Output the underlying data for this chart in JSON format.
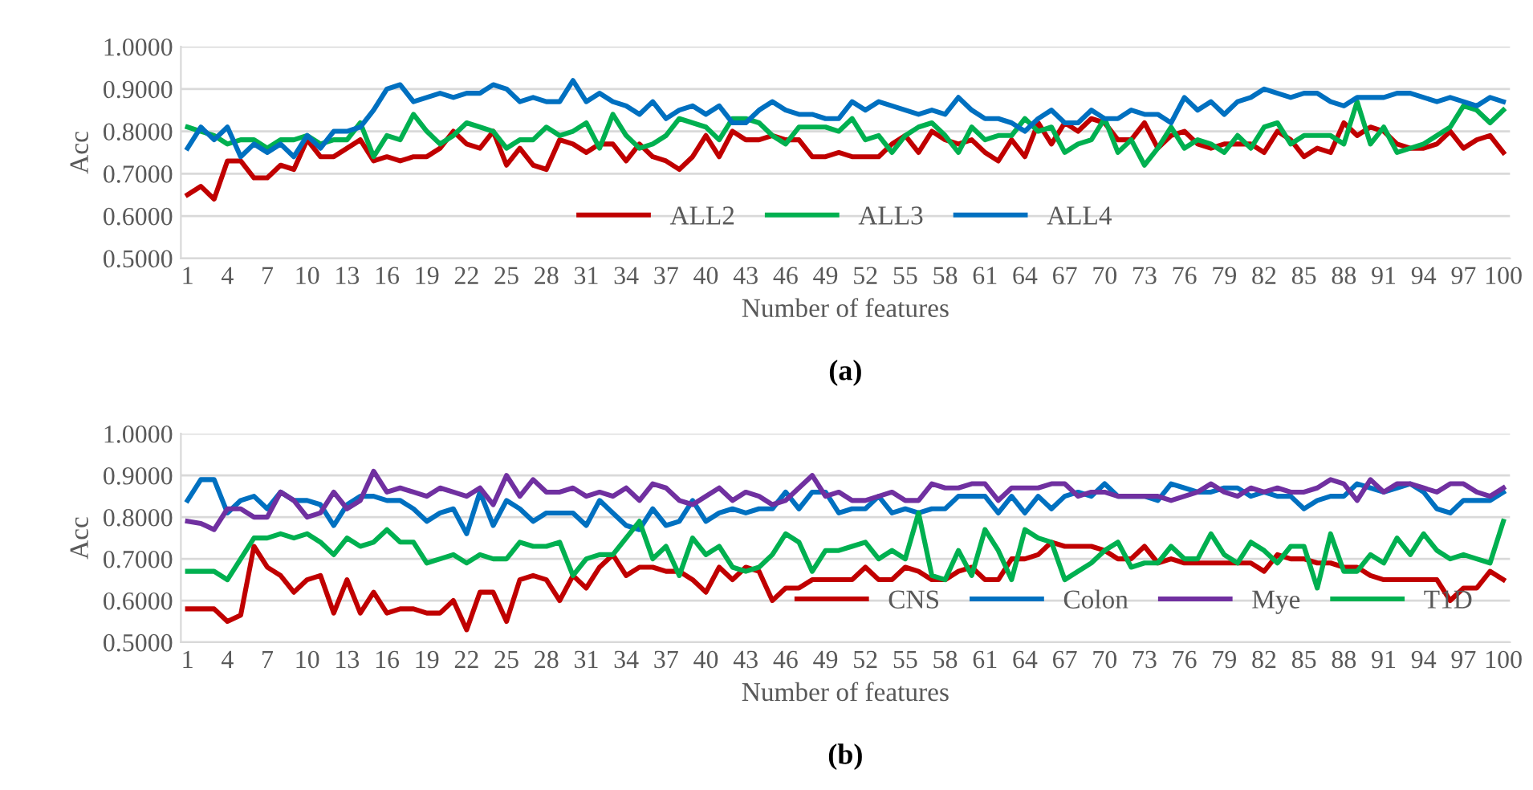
{
  "chart_data": [
    {
      "type": "line",
      "xlabel": "Number of features",
      "ylabel": "Acc",
      "annotations": [
        "(a)"
      ],
      "categories": [
        "1",
        null,
        null,
        "4",
        null,
        null,
        "7",
        null,
        null,
        "10",
        null,
        null,
        "13",
        null,
        null,
        "16",
        null,
        null,
        "19",
        null,
        null,
        "22",
        null,
        null,
        "25",
        null,
        null,
        "28",
        null,
        null,
        "31",
        null,
        null,
        "34",
        null,
        null,
        "37",
        null,
        null,
        "40",
        null,
        null,
        "43",
        null,
        null,
        "46",
        null,
        null,
        "49",
        null,
        null,
        "52",
        null,
        null,
        "55",
        null,
        null,
        "58",
        null,
        null,
        "61",
        null,
        null,
        "64",
        null,
        null,
        "67",
        null,
        null,
        "70",
        null,
        null,
        "73",
        null,
        null,
        "76",
        null,
        null,
        "79",
        null,
        null,
        "82",
        null,
        null,
        "85",
        null,
        null,
        "88",
        null,
        null,
        "91",
        null,
        null,
        "94",
        null,
        null,
        "97",
        null,
        null,
        "100"
      ],
      "ylim": [
        0.5,
        1.0
      ],
      "yticks": [
        {
          "value": 0.5,
          "label": "0.5000"
        },
        {
          "value": 0.6,
          "label": "0.6000"
        },
        {
          "value": 0.7,
          "label": "0.7000"
        },
        {
          "value": 0.8,
          "label": "0.8000"
        },
        {
          "value": 0.9,
          "label": "0.9000"
        },
        {
          "value": 1.0,
          "label": "1.0000"
        }
      ],
      "grid": "y",
      "legend": "bottom",
      "marker": "none",
      "line_style": "solid",
      "series": [
        {
          "name": "ALL2",
          "color": "#c00000",
          "values": [
            0.65,
            0.67,
            0.64,
            0.73,
            0.73,
            0.69,
            0.69,
            0.72,
            0.71,
            0.78,
            0.74,
            0.74,
            0.76,
            0.78,
            0.73,
            0.74,
            0.73,
            0.74,
            0.74,
            0.76,
            0.8,
            0.77,
            0.76,
            0.8,
            0.72,
            0.76,
            0.72,
            0.71,
            0.78,
            0.77,
            0.75,
            0.77,
            0.77,
            0.73,
            0.77,
            0.74,
            0.73,
            0.71,
            0.74,
            0.79,
            0.74,
            0.8,
            0.78,
            0.78,
            0.79,
            0.78,
            0.78,
            0.74,
            0.74,
            0.75,
            0.74,
            0.74,
            0.74,
            0.77,
            0.79,
            0.75,
            0.8,
            0.78,
            0.77,
            0.78,
            0.75,
            0.73,
            0.78,
            0.74,
            0.82,
            0.77,
            0.82,
            0.8,
            0.83,
            0.82,
            0.78,
            0.78,
            0.82,
            0.76,
            0.79,
            0.8,
            0.77,
            0.76,
            0.77,
            0.77,
            0.77,
            0.75,
            0.8,
            0.78,
            0.74,
            0.76,
            0.75,
            0.82,
            0.79,
            0.81,
            0.8,
            0.77,
            0.76,
            0.76,
            0.77,
            0.8,
            0.76,
            0.78,
            0.79,
            0.75
          ]
        },
        {
          "name": "ALL3",
          "color": "#00b050",
          "values": [
            0.81,
            0.8,
            0.79,
            0.77,
            0.78,
            0.78,
            0.76,
            0.78,
            0.78,
            0.79,
            0.77,
            0.78,
            0.78,
            0.82,
            0.74,
            0.79,
            0.78,
            0.84,
            0.8,
            0.77,
            0.79,
            0.82,
            0.81,
            0.8,
            0.76,
            0.78,
            0.78,
            0.81,
            0.79,
            0.8,
            0.82,
            0.76,
            0.84,
            0.79,
            0.76,
            0.77,
            0.79,
            0.83,
            0.82,
            0.81,
            0.78,
            0.83,
            0.83,
            0.82,
            0.79,
            0.77,
            0.81,
            0.81,
            0.81,
            0.8,
            0.83,
            0.78,
            0.79,
            0.75,
            0.79,
            0.81,
            0.82,
            0.79,
            0.75,
            0.81,
            0.78,
            0.79,
            0.79,
            0.83,
            0.8,
            0.81,
            0.75,
            0.77,
            0.78,
            0.83,
            0.75,
            0.78,
            0.72,
            0.76,
            0.81,
            0.76,
            0.78,
            0.77,
            0.75,
            0.79,
            0.76,
            0.81,
            0.82,
            0.77,
            0.79,
            0.79,
            0.79,
            0.77,
            0.87,
            0.77,
            0.81,
            0.75,
            0.76,
            0.77,
            0.79,
            0.81,
            0.86,
            0.85,
            0.82,
            0.85
          ]
        },
        {
          "name": "ALL4",
          "color": "#0070c0",
          "values": [
            0.76,
            0.81,
            0.78,
            0.81,
            0.74,
            0.77,
            0.75,
            0.77,
            0.74,
            0.79,
            0.76,
            0.8,
            0.8,
            0.81,
            0.85,
            0.9,
            0.91,
            0.87,
            0.88,
            0.89,
            0.88,
            0.89,
            0.89,
            0.91,
            0.9,
            0.87,
            0.88,
            0.87,
            0.87,
            0.92,
            0.87,
            0.89,
            0.87,
            0.86,
            0.84,
            0.87,
            0.83,
            0.85,
            0.86,
            0.84,
            0.86,
            0.82,
            0.82,
            0.85,
            0.87,
            0.85,
            0.84,
            0.84,
            0.83,
            0.83,
            0.87,
            0.85,
            0.87,
            0.86,
            0.85,
            0.84,
            0.85,
            0.84,
            0.88,
            0.85,
            0.83,
            0.83,
            0.82,
            0.8,
            0.83,
            0.85,
            0.82,
            0.82,
            0.85,
            0.83,
            0.83,
            0.85,
            0.84,
            0.84,
            0.82,
            0.88,
            0.85,
            0.87,
            0.84,
            0.87,
            0.88,
            0.9,
            0.89,
            0.88,
            0.89,
            0.89,
            0.87,
            0.86,
            0.88,
            0.88,
            0.88,
            0.89,
            0.89,
            0.88,
            0.87,
            0.88,
            0.87,
            0.86,
            0.88,
            0.87
          ]
        }
      ]
    },
    {
      "type": "line",
      "xlabel": "Number of features",
      "ylabel": "Acc",
      "annotations": [
        "(b)"
      ],
      "legend": "bottom right",
      "categories": [
        "1",
        null,
        null,
        "4",
        null,
        null,
        "7",
        null,
        null,
        "10",
        null,
        null,
        "13",
        null,
        null,
        "16",
        null,
        null,
        "19",
        null,
        null,
        "22",
        null,
        null,
        "25",
        null,
        null,
        "28",
        null,
        null,
        "31",
        null,
        null,
        "34",
        null,
        null,
        "37",
        null,
        null,
        "40",
        null,
        null,
        "43",
        null,
        null,
        "46",
        null,
        null,
        "49",
        null,
        null,
        "52",
        null,
        null,
        "55",
        null,
        null,
        "58",
        null,
        null,
        "61",
        null,
        null,
        "64",
        null,
        null,
        "67",
        null,
        null,
        "70",
        null,
        null,
        "73",
        null,
        null,
        "76",
        null,
        null,
        "79",
        null,
        null,
        "82",
        null,
        null,
        "85",
        null,
        null,
        "88",
        null,
        null,
        "91",
        null,
        null,
        "94",
        null,
        null,
        "97",
        null,
        null,
        "100"
      ],
      "ylim": [
        0.5,
        1.0
      ],
      "yticks": [
        {
          "value": 0.5,
          "label": "0.5000"
        },
        {
          "value": 0.6,
          "label": "0.6000"
        },
        {
          "value": 0.7,
          "label": "0.7000"
        },
        {
          "value": 0.8,
          "label": "0.8000"
        },
        {
          "value": 0.9,
          "label": "0.9000"
        },
        {
          "value": 1.0,
          "label": "1.0000"
        }
      ],
      "grid": "y",
      "marker": "none",
      "line_style": "solid",
      "series": [
        {
          "name": "CNS",
          "color": "#c00000",
          "values": [
            0.58,
            0.58,
            0.58,
            0.55,
            0.565,
            0.73,
            0.68,
            0.66,
            0.62,
            0.65,
            0.66,
            0.57,
            0.65,
            0.57,
            0.62,
            0.57,
            0.58,
            0.58,
            0.57,
            0.57,
            0.6,
            0.53,
            0.62,
            0.62,
            0.55,
            0.65,
            0.66,
            0.65,
            0.6,
            0.66,
            0.63,
            0.68,
            0.71,
            0.66,
            0.68,
            0.68,
            0.67,
            0.67,
            0.65,
            0.62,
            0.68,
            0.65,
            0.68,
            0.67,
            0.6,
            0.63,
            0.63,
            0.65,
            0.65,
            0.65,
            0.65,
            0.68,
            0.65,
            0.65,
            0.68,
            0.67,
            0.65,
            0.65,
            0.67,
            0.68,
            0.65,
            0.65,
            0.7,
            0.7,
            0.71,
            0.74,
            0.73,
            0.73,
            0.73,
            0.72,
            0.7,
            0.7,
            0.73,
            0.69,
            0.7,
            0.69,
            0.69,
            0.69,
            0.69,
            0.69,
            0.69,
            0.67,
            0.71,
            0.7,
            0.7,
            0.69,
            0.69,
            0.68,
            0.68,
            0.66,
            0.65,
            0.65,
            0.65,
            0.65,
            0.65,
            0.6,
            0.63,
            0.63,
            0.67,
            0.65
          ]
        },
        {
          "name": "Colon",
          "color": "#0070c0",
          "values": [
            0.84,
            0.89,
            0.89,
            0.81,
            0.84,
            0.85,
            0.82,
            0.86,
            0.84,
            0.84,
            0.83,
            0.78,
            0.83,
            0.85,
            0.85,
            0.84,
            0.84,
            0.82,
            0.79,
            0.81,
            0.82,
            0.76,
            0.86,
            0.78,
            0.84,
            0.82,
            0.79,
            0.81,
            0.81,
            0.81,
            0.78,
            0.84,
            0.81,
            0.78,
            0.77,
            0.82,
            0.78,
            0.79,
            0.84,
            0.79,
            0.81,
            0.82,
            0.81,
            0.82,
            0.82,
            0.86,
            0.82,
            0.86,
            0.86,
            0.81,
            0.82,
            0.82,
            0.85,
            0.81,
            0.82,
            0.81,
            0.82,
            0.82,
            0.85,
            0.85,
            0.85,
            0.81,
            0.85,
            0.81,
            0.85,
            0.82,
            0.85,
            0.86,
            0.85,
            0.88,
            0.85,
            0.85,
            0.85,
            0.84,
            0.88,
            0.87,
            0.86,
            0.86,
            0.87,
            0.87,
            0.85,
            0.86,
            0.85,
            0.85,
            0.82,
            0.84,
            0.85,
            0.85,
            0.88,
            0.87,
            0.86,
            0.87,
            0.88,
            0.86,
            0.82,
            0.81,
            0.84,
            0.84,
            0.84,
            0.86
          ]
        },
        {
          "name": "Mye",
          "color": "#7030a0",
          "values": [
            0.79,
            0.785,
            0.77,
            0.82,
            0.82,
            0.8,
            0.8,
            0.86,
            0.84,
            0.8,
            0.81,
            0.86,
            0.82,
            0.84,
            0.91,
            0.86,
            0.87,
            0.86,
            0.85,
            0.87,
            0.86,
            0.85,
            0.87,
            0.83,
            0.9,
            0.85,
            0.89,
            0.86,
            0.86,
            0.87,
            0.85,
            0.86,
            0.85,
            0.87,
            0.84,
            0.88,
            0.87,
            0.84,
            0.83,
            0.85,
            0.87,
            0.84,
            0.86,
            0.85,
            0.83,
            0.84,
            0.87,
            0.9,
            0.85,
            0.86,
            0.84,
            0.84,
            0.85,
            0.86,
            0.84,
            0.84,
            0.88,
            0.87,
            0.87,
            0.88,
            0.88,
            0.84,
            0.87,
            0.87,
            0.87,
            0.88,
            0.88,
            0.85,
            0.86,
            0.86,
            0.85,
            0.85,
            0.85,
            0.85,
            0.84,
            0.85,
            0.86,
            0.88,
            0.86,
            0.85,
            0.87,
            0.86,
            0.87,
            0.86,
            0.86,
            0.87,
            0.89,
            0.88,
            0.84,
            0.89,
            0.86,
            0.88,
            0.88,
            0.87,
            0.86,
            0.88,
            0.88,
            0.86,
            0.85,
            0.87
          ]
        },
        {
          "name": "T1D",
          "color": "#00b050",
          "values": [
            0.67,
            0.67,
            0.67,
            0.65,
            0.7,
            0.75,
            0.75,
            0.76,
            0.75,
            0.76,
            0.74,
            0.71,
            0.75,
            0.73,
            0.74,
            0.77,
            0.74,
            0.74,
            0.69,
            0.7,
            0.71,
            0.69,
            0.71,
            0.7,
            0.7,
            0.74,
            0.73,
            0.73,
            0.74,
            0.66,
            0.7,
            0.71,
            0.71,
            0.75,
            0.79,
            0.7,
            0.73,
            0.66,
            0.75,
            0.71,
            0.73,
            0.68,
            0.67,
            0.68,
            0.71,
            0.76,
            0.74,
            0.67,
            0.72,
            0.72,
            0.73,
            0.74,
            0.7,
            0.72,
            0.7,
            0.81,
            0.66,
            0.65,
            0.72,
            0.66,
            0.77,
            0.72,
            0.65,
            0.77,
            0.75,
            0.74,
            0.65,
            0.67,
            0.69,
            0.72,
            0.74,
            0.68,
            0.69,
            0.69,
            0.73,
            0.7,
            0.7,
            0.76,
            0.71,
            0.69,
            0.74,
            0.72,
            0.69,
            0.73,
            0.73,
            0.63,
            0.76,
            0.67,
            0.67,
            0.71,
            0.69,
            0.75,
            0.71,
            0.76,
            0.72,
            0.7,
            0.71,
            0.7,
            0.69,
            0.79
          ]
        }
      ]
    }
  ]
}
